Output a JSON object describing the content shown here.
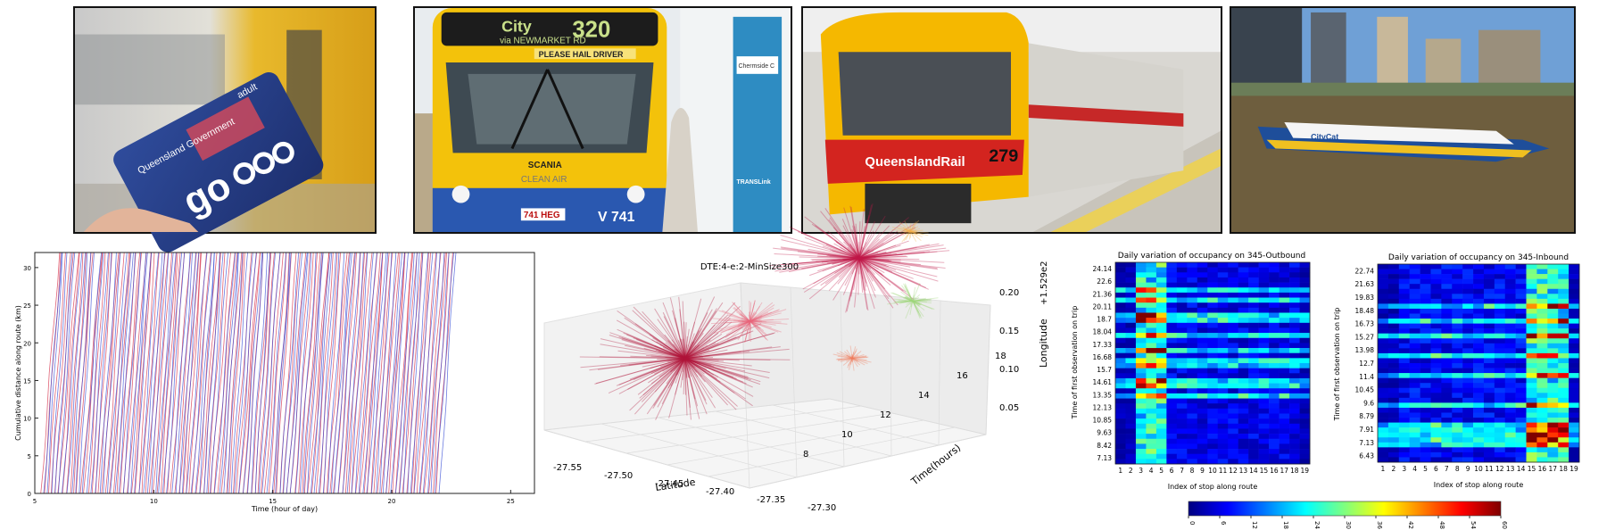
{
  "photos": {
    "card": {
      "brand": "Queensland Government",
      "type": "adult",
      "logo": "go"
    },
    "bus": {
      "dest": "City",
      "via": "via NEWMARKET RD",
      "route": "320",
      "hail": "PLEASE HAIL DRIVER",
      "make": "SCANIA",
      "eco": "CLEAN AIR",
      "plate": "741 HEG",
      "fleet": "V 741",
      "stop": "Chermside C",
      "agency": "TRANSLink"
    },
    "train": {
      "brand": "QueenslandRail",
      "number": "279"
    },
    "ferry": {
      "name": "CityCat"
    }
  },
  "chart_data": [
    {
      "type": "line",
      "title": "",
      "xlabel": "Time (hour of day)",
      "ylabel": "Cumulative distance along route (km)",
      "xlim": [
        5,
        26
      ],
      "ylim": [
        0,
        32
      ],
      "xticks": [
        5,
        10,
        15,
        20,
        25
      ],
      "yticks": [
        0,
        5,
        10,
        15,
        20,
        25,
        30
      ],
      "grid": false,
      "series": [
        {
          "color": "#d6304a",
          "start_time_first": 5.25,
          "start_time_last": 21.85,
          "count": 110,
          "distance_max": 32,
          "travel_time_h": 0.75
        },
        {
          "color": "#3a4fd6",
          "start_time_first": 5.35,
          "start_time_last": 22.0,
          "count": 100,
          "distance_max": 32,
          "travel_time_h": 0.72
        }
      ]
    },
    {
      "type": "scatter",
      "title": "DTE:4-e:2-MinSize300",
      "xlabel": "Latitude",
      "ylabel": "Time(hours)",
      "zlabel": "Longitude",
      "z_offset": "+1.529e2",
      "xticks": [
        "-27.55",
        "-27.50",
        "-27.45",
        "-27.40",
        "-27.35",
        "-27.30"
      ],
      "yticks": [
        "8",
        "10",
        "12",
        "14",
        "16",
        "18"
      ],
      "zticks": [
        "0.05",
        "0.10",
        "0.15",
        "0.20"
      ],
      "clusters": [
        {
          "lat": -27.47,
          "time": 9,
          "lon": 0.09,
          "size": 300,
          "color": "#b0153a"
        },
        {
          "lat": -27.38,
          "time": 15,
          "lon": 0.17,
          "size": 260,
          "color": "#c01848"
        },
        {
          "lat": -27.43,
          "time": 11,
          "lon": 0.12,
          "size": 120,
          "color": "#e8647a"
        },
        {
          "lat": -27.33,
          "time": 16,
          "lon": 0.11,
          "size": 90,
          "color": "#9ed67a"
        },
        {
          "lat": -27.31,
          "time": 12,
          "lon": 0.06,
          "size": 60,
          "color": "#f07a5a"
        },
        {
          "lat": -27.36,
          "time": 17,
          "lon": 0.19,
          "size": 60,
          "color": "#f6b04a"
        }
      ]
    },
    {
      "type": "heatmap",
      "title": "Daily variation of occupancy on 345-Outbound",
      "xlabel": "Index of stop along route",
      "ylabel": "Time of first observation on trip",
      "x": [
        "1",
        "2",
        "3",
        "4",
        "5",
        "6",
        "7",
        "8",
        "9",
        "10",
        "11",
        "12",
        "13",
        "14",
        "15",
        "16",
        "17",
        "18",
        "19"
      ],
      "y": [
        "24.14",
        "22.6",
        "21.36",
        "20.11",
        "18.7",
        "18.04",
        "17.33",
        "16.68",
        "15.7",
        "14.61",
        "13.35",
        "12.13",
        "10.85",
        "9.63",
        "8.42",
        "7.13"
      ],
      "rows": 40,
      "vmin": 0,
      "vmax": 60,
      "peak_stops": [
        3,
        4,
        5
      ],
      "peak_rows": [
        5,
        7,
        10,
        11,
        14,
        17,
        19,
        20,
        23,
        24,
        26
      ],
      "base_value": 7
    },
    {
      "type": "heatmap",
      "title": "Daily variation of occupancy on 345-Inbound",
      "xlabel": "Index of stop along route",
      "ylabel": "Time of first observation on trip",
      "x": [
        "1",
        "2",
        "3",
        "4",
        "5",
        "6",
        "7",
        "8",
        "9",
        "10",
        "11",
        "12",
        "13",
        "14",
        "15",
        "16",
        "17",
        "18",
        "19"
      ],
      "y": [
        "22.74",
        "21.63",
        "19.83",
        "18.48",
        "16.73",
        "15.27",
        "13.98",
        "12.7",
        "11.4",
        "10.45",
        "9.6",
        "8.79",
        "7.91",
        "7.13",
        "6.43"
      ],
      "rows": 40,
      "vmin": 0,
      "vmax": 60,
      "peak_stops": [
        15,
        16,
        17,
        18
      ],
      "peak_rows": [
        8,
        11,
        14,
        18,
        22,
        28,
        32,
        33,
        34,
        35,
        36
      ],
      "base_value": 8
    }
  ],
  "colorbar": {
    "ticks": [
      "0",
      "6",
      "12",
      "18",
      "24",
      "30",
      "36",
      "42",
      "48",
      "54",
      "60"
    ],
    "cmap": [
      "#00007f",
      "#0000ff",
      "#007fff",
      "#00ffff",
      "#7fff7f",
      "#ffff00",
      "#ff7f00",
      "#ff0000",
      "#7f0000"
    ]
  }
}
